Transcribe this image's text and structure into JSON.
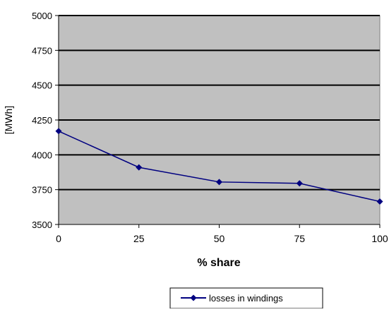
{
  "chart_data": {
    "type": "line",
    "title": "",
    "xlabel": "% share",
    "ylabel": "[MWh]",
    "x": [
      0,
      25,
      50,
      75,
      100
    ],
    "x_ticks": [
      "0",
      "25",
      "50",
      "75",
      "100"
    ],
    "y_ticks": [
      "3500",
      "3750",
      "4000",
      "4250",
      "4500",
      "4750",
      "5000"
    ],
    "xlim": [
      0,
      100
    ],
    "ylim": [
      3500,
      5000
    ],
    "grid": "horizontal",
    "legend_position": "bottom",
    "series": [
      {
        "name": "losses in windings",
        "values": [
          4170,
          3910,
          3805,
          3795,
          3665
        ],
        "color": "#000080",
        "marker": "diamond"
      }
    ],
    "plot_background": "#c0c0c0",
    "gridline_color": "#000000"
  }
}
